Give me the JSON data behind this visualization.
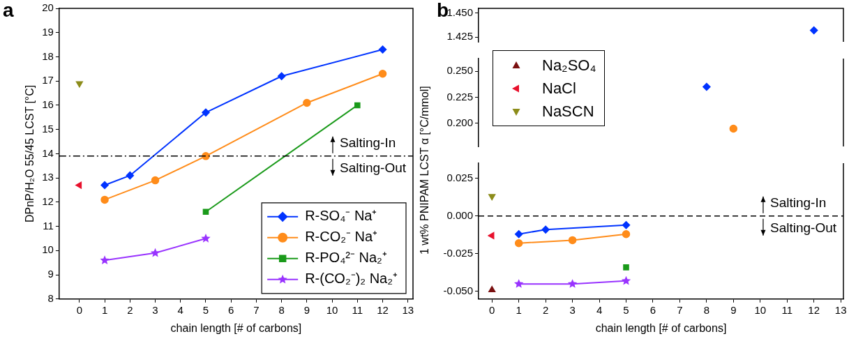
{
  "chart_data": [
    {
      "type": "line",
      "title": "a",
      "xlabel": "chain length [# of carbons]",
      "ylabel": "DPnP/H₂O 55/45 LCST [°C]",
      "xlim": [
        -0.8,
        13.2
      ],
      "xticks": [
        0,
        1,
        2,
        3,
        4,
        5,
        6,
        7,
        8,
        9,
        10,
        11,
        12,
        13
      ],
      "ylim": [
        8,
        20
      ],
      "yticks": [
        8,
        9,
        10,
        11,
        12,
        13,
        14,
        15,
        16,
        17,
        18,
        19,
        20
      ],
      "legend": "bottom right",
      "series": [
        {
          "name": "R-SO₄⁻ Na⁺",
          "color": "#0033ff",
          "marker": "diamond",
          "x": [
            1,
            2,
            5,
            8,
            12
          ],
          "values": [
            12.7,
            13.1,
            15.7,
            17.2,
            18.3
          ]
        },
        {
          "name": "R-CO₂⁻ Na⁺",
          "color": "#ff8c1a",
          "marker": "circle",
          "x": [
            1,
            3,
            5,
            9,
            12
          ],
          "values": [
            12.1,
            12.9,
            13.9,
            16.1,
            17.3
          ]
        },
        {
          "name": "R-PO₄²⁻ Na₂⁺",
          "color": "#1a9a1a",
          "marker": "square",
          "x": [
            5,
            11
          ],
          "values": [
            11.6,
            16.0
          ]
        },
        {
          "name": "R-(CO₂⁻)₂ Na₂⁺",
          "color": "#9933ff",
          "marker": "star",
          "x": [
            1,
            3,
            5
          ],
          "values": [
            9.6,
            9.9,
            10.5
          ]
        },
        {
          "color": "#e8112d",
          "marker": "triangle-left",
          "x": [
            0
          ],
          "values": [
            12.7
          ]
        },
        {
          "color": "#8c8c1a",
          "marker": "triangle-down",
          "x": [
            0
          ],
          "values": [
            16.9
          ]
        }
      ],
      "ref_lines": [
        {
          "axis": "y",
          "value": 13.9,
          "color": "#000000",
          "line_style": "dashdot"
        }
      ],
      "annotations": [
        "Salting-In",
        "Salting-Out"
      ]
    },
    {
      "type": "line",
      "title": "b",
      "xlim": [
        -0.5,
        13.1
      ],
      "xticks": [
        0,
        1,
        2,
        3,
        4,
        5,
        6,
        7,
        8,
        9,
        10,
        11,
        12,
        13
      ],
      "ylim": [
        1.42,
        1.455
      ],
      "yticks": [
        {
          "value": 1.425,
          "label": "1.425"
        },
        {
          "value": 1.45,
          "label": "1.450"
        }
      ],
      "tick_labels": "y",
      "series": [
        {
          "color": "#0033ff",
          "marker": "diamond",
          "x": [
            12
          ],
          "values": [
            1.432
          ]
        }
      ]
    },
    {
      "type": "line",
      "xlim": [
        -0.5,
        13.1
      ],
      "xticks": [
        0,
        1,
        2,
        3,
        4,
        5,
        6,
        7,
        8,
        9,
        10,
        11,
        12,
        13
      ],
      "ylim": [
        0.178,
        0.262
      ],
      "yticks": [
        {
          "value": 0.2,
          "label": "0.200"
        },
        {
          "value": 0.225,
          "label": "0.225"
        },
        {
          "value": 0.25,
          "label": "0.250"
        }
      ],
      "tick_labels": "y",
      "series": [
        {
          "color": "#0033ff",
          "marker": "diamond",
          "x": [
            8
          ],
          "values": [
            0.235
          ]
        },
        {
          "color": "#ff8c1a",
          "marker": "circle",
          "x": [
            9
          ],
          "values": [
            0.195
          ]
        }
      ]
    },
    {
      "type": "line",
      "xlabel": "chain length [# of carbons]",
      "ylabel": "1 wt% PNIPAM LCST α [°C/mmol]",
      "xlim": [
        -0.5,
        13.1
      ],
      "xticks": [
        0,
        1,
        2,
        3,
        4,
        5,
        6,
        7,
        8,
        9,
        10,
        11,
        12,
        13
      ],
      "ylim": [
        -0.055,
        0.035
      ],
      "yticks": [
        {
          "value": -0.05,
          "label": "-0.050"
        },
        {
          "value": -0.025,
          "label": "-0.025"
        },
        {
          "value": 0,
          "label": "0.000"
        },
        {
          "value": 0.025,
          "label": "0.025"
        }
      ],
      "legend": "top left",
      "series": [
        {
          "color": "#0033ff",
          "marker": "diamond",
          "x": [
            1,
            2,
            5
          ],
          "values": [
            -0.012,
            -0.009,
            -0.006
          ]
        },
        {
          "color": "#ff8c1a",
          "marker": "circle",
          "x": [
            1,
            3,
            5
          ],
          "values": [
            -0.018,
            -0.016,
            -0.012
          ]
        },
        {
          "color": "#1a9a1a",
          "marker": "square",
          "x": [
            5
          ],
          "values": [
            -0.034
          ]
        },
        {
          "color": "#9933ff",
          "marker": "star",
          "x": [
            1,
            3,
            5
          ],
          "values": [
            -0.045,
            -0.045,
            -0.043
          ]
        },
        {
          "type": "scatter",
          "name": "Na₂SO₄",
          "color": "#7a1010",
          "marker": "triangle",
          "x": [
            0
          ],
          "values": [
            -0.049
          ]
        },
        {
          "type": "scatter",
          "name": "NaCl",
          "color": "#e8112d",
          "marker": "triangle-left",
          "x": [
            0
          ],
          "values": [
            -0.013
          ]
        },
        {
          "type": "scatter",
          "name": "NaSCN",
          "color": "#8c8c1a",
          "marker": "triangle-down",
          "x": [
            0
          ],
          "values": [
            0.013
          ]
        }
      ],
      "ref_lines": [
        {
          "axis": "y",
          "value": 0,
          "color": "#000000",
          "line_style": "dashed"
        }
      ],
      "annotations": [
        "Salting-In",
        "Salting-Out"
      ]
    }
  ]
}
